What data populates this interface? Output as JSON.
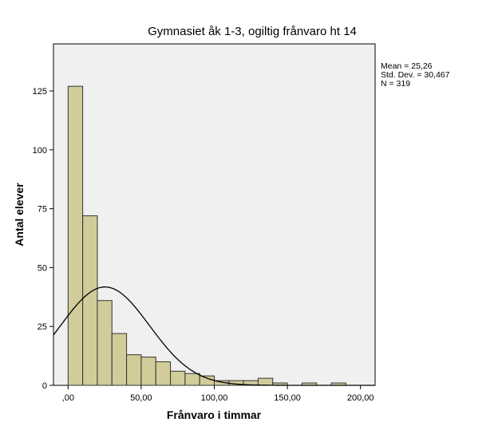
{
  "chart_data": {
    "type": "bar",
    "subtype": "histogram-with-normal-curve",
    "title": "Gymnasiet åk 1-3, ogiltig frånvaro ht 14",
    "xlabel": "Frånvaro i timmar",
    "ylabel": "Antal elever",
    "xlim": [
      -10,
      210
    ],
    "ylim": [
      0,
      145
    ],
    "x_ticks": [
      0,
      50,
      100,
      150,
      200
    ],
    "x_tick_labels": [
      ",00",
      "50,00",
      "100,00",
      "150,00",
      "200,00"
    ],
    "y_ticks": [
      0,
      25,
      50,
      75,
      100,
      125
    ],
    "y_tick_labels": [
      "0",
      "25",
      "50",
      "75",
      "100",
      "125"
    ],
    "bin_width": 10,
    "bins": [
      {
        "start": 0,
        "end": 10,
        "count": 127
      },
      {
        "start": 10,
        "end": 20,
        "count": 72
      },
      {
        "start": 20,
        "end": 30,
        "count": 36
      },
      {
        "start": 30,
        "end": 40,
        "count": 22
      },
      {
        "start": 40,
        "end": 50,
        "count": 13
      },
      {
        "start": 50,
        "end": 60,
        "count": 12
      },
      {
        "start": 60,
        "end": 70,
        "count": 10
      },
      {
        "start": 70,
        "end": 80,
        "count": 6
      },
      {
        "start": 80,
        "end": 90,
        "count": 5
      },
      {
        "start": 90,
        "end": 100,
        "count": 4
      },
      {
        "start": 100,
        "end": 110,
        "count": 2
      },
      {
        "start": 110,
        "end": 120,
        "count": 2
      },
      {
        "start": 120,
        "end": 130,
        "count": 2
      },
      {
        "start": 130,
        "end": 140,
        "count": 3
      },
      {
        "start": 140,
        "end": 150,
        "count": 1
      },
      {
        "start": 160,
        "end": 170,
        "count": 1
      },
      {
        "start": 180,
        "end": 190,
        "count": 1
      }
    ],
    "normal_curve": {
      "mean": 25.26,
      "std_dev": 30.467,
      "n": 319
    },
    "stats_lines": [
      "Mean = 25,26",
      "Std. Dev. = 30,467",
      "N = 319"
    ],
    "grid": false,
    "colors": {
      "bar_fill": "#d2cc9a",
      "bar_stroke": "#333333",
      "plot_background": "#f0f0f0",
      "curve": "#000000"
    }
  }
}
